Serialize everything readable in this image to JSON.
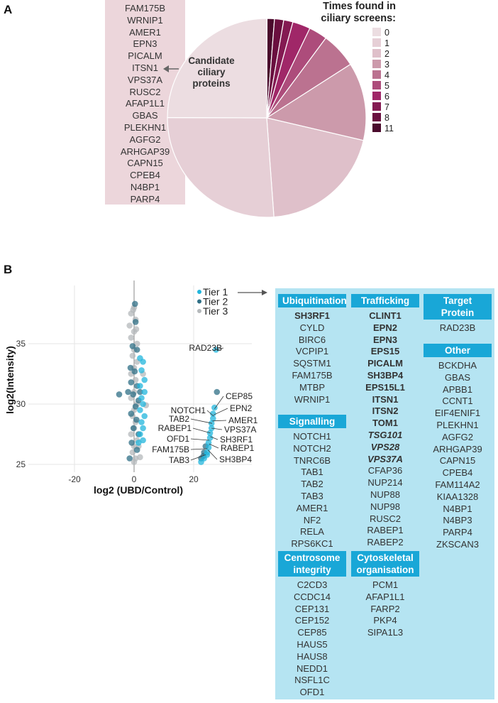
{
  "panel_labels": {
    "a": "A",
    "b": "B"
  },
  "candidate_list": [
    "FAM175B",
    "WRNIP1",
    "AMER1",
    "EPN3",
    "PICALM",
    "ITSN1",
    "VPS37A",
    "RUSC2",
    "AFAP1L1",
    "GBAS",
    "PLEKHN1",
    "AGFG2",
    "ARHGAP39",
    "CAPN15",
    "CPEB4",
    "N4BP1",
    "PARP4"
  ],
  "chart_data": [
    {
      "type": "pie",
      "title": "Times found in ciliary screens:",
      "title_lines": [
        "Times found in",
        "ciliary screens:"
      ],
      "annotation": [
        "Candidate",
        "ciliary",
        "proteins"
      ],
      "legend_placement": "top-right",
      "slices": [
        {
          "label": "11",
          "percent": 1.25,
          "color": "#4a0a2c"
        },
        {
          "label": "8",
          "percent": 1.5,
          "color": "#6a0f3f"
        },
        {
          "label": "7",
          "percent": 1.5,
          "color": "#841a52"
        },
        {
          "label": "6",
          "percent": 2.9,
          "color": "#a02768"
        },
        {
          "label": "5",
          "percent": 3.0,
          "color": "#ad4c7b"
        },
        {
          "label": "4",
          "percent": 5.8,
          "color": "#bb7290"
        },
        {
          "label": "3",
          "percent": 12.7,
          "color": "#cc9aab"
        },
        {
          "label": "2",
          "percent": 20.2,
          "color": "#dfc0ca"
        },
        {
          "label": "1",
          "percent": 26.2,
          "color": "#e6cfd6"
        },
        {
          "label": "0",
          "percent": 25.0,
          "color": "#ecdde1"
        }
      ],
      "legend_order": [
        "0",
        "1",
        "2",
        "3",
        "4",
        "5",
        "6",
        "7",
        "8",
        "11"
      ]
    },
    {
      "type": "scatter",
      "xlabel": "log2 (UBD/Control)",
      "ylabel": "log2(Intensity)",
      "xlim": [
        -35,
        40
      ],
      "ylim": [
        24.3,
        39.6
      ],
      "xticks": [
        -20,
        0,
        20
      ],
      "yticks": [
        25,
        30,
        35
      ],
      "grid": true,
      "legend_placement": "top-right",
      "series": [
        {
          "name": "Tier 3",
          "color": "#b4b8bb",
          "points": [
            [
              0,
              38
            ],
            [
              -1,
              37.5
            ],
            [
              0.5,
              37
            ],
            [
              -1.5,
              36.5
            ],
            [
              0,
              36
            ],
            [
              -1,
              35.5
            ],
            [
              1,
              35
            ],
            [
              0,
              34.5
            ],
            [
              -0.5,
              34
            ],
            [
              1,
              33.5
            ],
            [
              0,
              33
            ],
            [
              -1,
              32.5
            ],
            [
              0.5,
              32
            ],
            [
              0,
              31
            ],
            [
              -1,
              30.5
            ],
            [
              1,
              30
            ],
            [
              0,
              29.5
            ],
            [
              -0.5,
              29
            ],
            [
              0.5,
              28.5
            ],
            [
              0,
              28
            ],
            [
              -1,
              27.5
            ],
            [
              1,
              27
            ],
            [
              0,
              26.5
            ],
            [
              -0.5,
              26
            ],
            [
              0.5,
              25.5
            ],
            [
              0,
              25.2
            ],
            [
              4,
              29.9
            ],
            [
              3,
              32.5
            ],
            [
              2,
              25.6
            ],
            [
              1.5,
              26.5
            ],
            [
              -0.3,
              37.8
            ],
            [
              0.7,
              36.2
            ]
          ]
        },
        {
          "name": "Tier 2",
          "color": "#2f6f86",
          "points": [
            [
              0.3,
              38.3
            ],
            [
              0.5,
              36.8
            ],
            [
              -0.5,
              34.8
            ],
            [
              1,
              34.5
            ],
            [
              -1.2,
              33
            ],
            [
              0.2,
              32.7
            ],
            [
              -1,
              31.8
            ],
            [
              1,
              31.5
            ],
            [
              -0.3,
              30.8
            ],
            [
              1.5,
              30.3
            ],
            [
              -1,
              29.2
            ],
            [
              0.8,
              28.7
            ],
            [
              -0.2,
              28
            ],
            [
              1.5,
              27.5
            ],
            [
              -0.8,
              26.8
            ],
            [
              1,
              26.2
            ],
            [
              -1.5,
              25.5
            ],
            [
              0.5,
              29.8
            ],
            [
              2,
              31
            ],
            [
              -2,
              31
            ],
            [
              -5,
              30.8
            ],
            [
              27.8,
              31
            ],
            [
              24,
              26.5
            ],
            [
              23.5,
              26
            ],
            [
              22.5,
              25.5
            ],
            [
              23.3,
              25.7
            ]
          ]
        },
        {
          "name": "Tier 1",
          "color": "#22b5dc",
          "points": [
            [
              2,
              33.8
            ],
            [
              3,
              33.5
            ],
            [
              2.5,
              32.8
            ],
            [
              3.5,
              32
            ],
            [
              2,
              31.5
            ],
            [
              3.5,
              31
            ],
            [
              2.5,
              30.5
            ],
            [
              3,
              30
            ],
            [
              2,
              29.5
            ],
            [
              3.5,
              29
            ],
            [
              2.5,
              28.5
            ],
            [
              3,
              28
            ],
            [
              2,
              27.5
            ],
            [
              3,
              27
            ],
            [
              1.5,
              26.8
            ],
            [
              27.5,
              34.5
            ],
            [
              27,
              29.7
            ],
            [
              26.5,
              29.2
            ],
            [
              26.5,
              28.8
            ],
            [
              26,
              28.4
            ],
            [
              26,
              28
            ],
            [
              25.5,
              27.6
            ],
            [
              25.5,
              27.2
            ],
            [
              25,
              26.8
            ],
            [
              25,
              26.4
            ],
            [
              24.5,
              26
            ],
            [
              24.5,
              25.8
            ],
            [
              23.5,
              25.5
            ],
            [
              22.5,
              25.2
            ]
          ]
        }
      ],
      "legend": [
        "Tier 1",
        "Tier 2",
        "Tier 3"
      ],
      "point_labels": [
        {
          "text": "RAD23B",
          "point": [
            27.5,
            34.5
          ]
        },
        {
          "text": "CEP85",
          "point": [
            27,
            29.6
          ]
        },
        {
          "text": "EPN2",
          "point": [
            26.7,
            29.1
          ]
        },
        {
          "text": "AMER1",
          "point": [
            26.3,
            28.6
          ]
        },
        {
          "text": "VPS37A",
          "point": [
            26,
            28
          ]
        },
        {
          "text": "SH3RF1",
          "point": [
            25.6,
            27.3
          ]
        },
        {
          "text": "RABEP1",
          "point": [
            25.2,
            26.7
          ]
        },
        {
          "text": "SH3BP4",
          "point": [
            24.8,
            26.2
          ]
        },
        {
          "text": "NOTCH1",
          "point": [
            26.7,
            29.0
          ]
        },
        {
          "text": "TAB2",
          "point": [
            26.2,
            28.4
          ]
        },
        {
          "text": "RABEP1",
          "point": [
            25.6,
            27.6
          ]
        },
        {
          "text": "OFD1",
          "point": [
            25.2,
            27.0
          ]
        },
        {
          "text": "FAM175B",
          "point": [
            24.6,
            26.3
          ]
        },
        {
          "text": "TAB3",
          "point": [
            24,
            25.8
          ]
        }
      ]
    }
  ],
  "categories": {
    "col1": [
      {
        "title": "Ubiquitination",
        "items": [
          {
            "name": "SH3RF1",
            "style": "bold"
          },
          {
            "name": "CYLD",
            "style": "normal"
          },
          {
            "name": "BIRC6",
            "style": "normal"
          },
          {
            "name": "VCPIP1",
            "style": "normal"
          },
          {
            "name": "SQSTM1",
            "style": "normal"
          },
          {
            "name": "FAM175B",
            "style": "normal"
          },
          {
            "name": "MTBP",
            "style": "normal"
          },
          {
            "name": "WRNIP1",
            "style": "normal"
          }
        ]
      },
      {
        "title": "Signalling",
        "items": [
          {
            "name": "NOTCH1",
            "style": "normal"
          },
          {
            "name": "NOTCH2",
            "style": "normal"
          },
          {
            "name": "TNRC6B",
            "style": "normal"
          },
          {
            "name": "TAB1",
            "style": "normal"
          },
          {
            "name": "TAB2",
            "style": "normal"
          },
          {
            "name": "TAB3",
            "style": "normal"
          },
          {
            "name": "AMER1",
            "style": "normal"
          },
          {
            "name": "NF2",
            "style": "normal"
          },
          {
            "name": "RELA",
            "style": "normal"
          },
          {
            "name": "RPS6KC1",
            "style": "normal"
          }
        ]
      },
      {
        "title": "Centrosome integrity",
        "items": [
          {
            "name": "C2CD3",
            "style": "normal"
          },
          {
            "name": "CCDC14",
            "style": "normal"
          },
          {
            "name": "CEP131",
            "style": "normal"
          },
          {
            "name": "CEP152",
            "style": "normal"
          },
          {
            "name": "CEP85",
            "style": "normal"
          },
          {
            "name": "HAUS5",
            "style": "normal"
          },
          {
            "name": "HAUS8",
            "style": "normal"
          },
          {
            "name": "NEDD1",
            "style": "normal"
          },
          {
            "name": "NSFL1C",
            "style": "normal"
          },
          {
            "name": "OFD1",
            "style": "normal"
          }
        ]
      }
    ],
    "col2": [
      {
        "title": "Trafficking",
        "items": [
          {
            "name": "CLINT1",
            "style": "bold"
          },
          {
            "name": "EPN2",
            "style": "bold"
          },
          {
            "name": "EPN3",
            "style": "bold"
          },
          {
            "name": "EPS15",
            "style": "bold"
          },
          {
            "name": "PICALM",
            "style": "bold"
          },
          {
            "name": "SH3BP4",
            "style": "bold"
          },
          {
            "name": "EPS15L1",
            "style": "bold"
          },
          {
            "name": "ITSN1",
            "style": "bold"
          },
          {
            "name": "ITSN2",
            "style": "bold"
          },
          {
            "name": "TOM1",
            "style": "bold"
          },
          {
            "name": "TSG101",
            "style": "bold-italic"
          },
          {
            "name": "VPS28",
            "style": "bold-italic"
          },
          {
            "name": "VPS37A",
            "style": "bold-italic"
          },
          {
            "name": "CFAP36",
            "style": "normal"
          },
          {
            "name": "NUP214",
            "style": "normal"
          },
          {
            "name": "NUP88",
            "style": "normal"
          },
          {
            "name": "NUP98",
            "style": "normal"
          },
          {
            "name": "RUSC2",
            "style": "normal"
          },
          {
            "name": "RABEP1",
            "style": "normal"
          },
          {
            "name": "RABEP2",
            "style": "normal"
          }
        ]
      },
      {
        "title": "Cytoskeletal organisation",
        "items": [
          {
            "name": "PCM1",
            "style": "normal"
          },
          {
            "name": "AFAP1L1",
            "style": "normal"
          },
          {
            "name": "FARP2",
            "style": "normal"
          },
          {
            "name": "PKP4",
            "style": "normal"
          },
          {
            "name": "SIPA1L3",
            "style": "normal"
          }
        ]
      }
    ],
    "col3": [
      {
        "title": "Target Protein",
        "items": [
          {
            "name": "RAD23B",
            "style": "normal"
          }
        ]
      },
      {
        "title": "Other",
        "items": [
          {
            "name": "BCKDHA",
            "style": "normal"
          },
          {
            "name": "GBAS",
            "style": "normal"
          },
          {
            "name": "APBB1",
            "style": "normal"
          },
          {
            "name": "CCNT1",
            "style": "normal"
          },
          {
            "name": "EIF4ENIF1",
            "style": "normal"
          },
          {
            "name": "PLEKHN1",
            "style": "normal"
          },
          {
            "name": "AGFG2",
            "style": "normal"
          },
          {
            "name": "ARHGAP39",
            "style": "normal"
          },
          {
            "name": "CAPN15",
            "style": "normal"
          },
          {
            "name": "CPEB4",
            "style": "normal"
          },
          {
            "name": "FAM114A2",
            "style": "normal"
          },
          {
            "name": "KIAA1328",
            "style": "normal"
          },
          {
            "name": "N4BP1",
            "style": "normal"
          },
          {
            "name": "N4BP3",
            "style": "normal"
          },
          {
            "name": "PARP4",
            "style": "normal"
          },
          {
            "name": "ZKSCAN3",
            "style": "normal"
          }
        ]
      }
    ]
  }
}
